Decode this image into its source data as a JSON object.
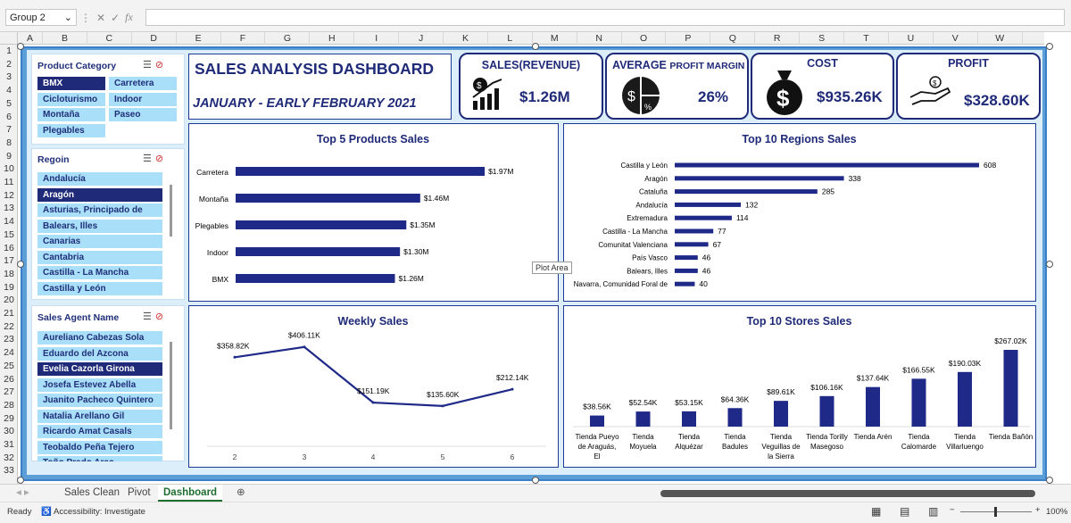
{
  "formula_bar": {
    "name_box": "Group 2",
    "fx": "fx"
  },
  "columns": [
    "A",
    "B",
    "C",
    "D",
    "E",
    "F",
    "G",
    "H",
    "I",
    "J",
    "K",
    "L",
    "M",
    "N",
    "O",
    "P",
    "Q",
    "R",
    "S",
    "T",
    "U",
    "V",
    "W"
  ],
  "rows": [
    "1",
    "2",
    "3",
    "4",
    "5",
    "6",
    "7",
    "8",
    "9",
    "10",
    "11",
    "12",
    "13",
    "14",
    "15",
    "16",
    "17",
    "18",
    "19",
    "20",
    "21",
    "22",
    "23",
    "24",
    "25",
    "26",
    "27",
    "28",
    "29",
    "30",
    "31",
    "32",
    "33"
  ],
  "header": {
    "title": "SALES ANALYSIS DASHBOARD",
    "subtitle": "JANUARY - EARLY FEBRUARY 2021"
  },
  "kpis": {
    "revenue": {
      "title": "SALES(REVENUE)",
      "value": "$1.26M"
    },
    "margin": {
      "title_a": "AVERAGE ",
      "title_b": "PROFIT MARGIN",
      "value": "26%"
    },
    "cost": {
      "title": "COST",
      "value": "$935.26K"
    },
    "profit": {
      "title": "PROFIT",
      "value": "$328.60K"
    }
  },
  "slicers": {
    "product": {
      "title": "Product Category",
      "items": [
        "BMX",
        "Carretera",
        "Cicloturismo",
        "Indoor",
        "Montaña",
        "Paseo",
        "Plegables"
      ]
    },
    "region": {
      "title": "Regoin",
      "items": [
        "Andalucía",
        "Aragón",
        "Asturias, Principado de",
        "Balears, Illes",
        "Canarias",
        "Cantabria",
        "Castilla - La Mancha",
        "Castilla y León"
      ]
    },
    "agent": {
      "title": "Sales Agent Name",
      "items": [
        "Aureliano Cabezas Sola",
        "Eduardo del Azcona",
        "Evelia Cazorla Girona",
        "Josefa Estevez Abella",
        "Juanito Pacheco Quintero",
        "Natalia Arellano Gil",
        "Ricardo Amat Casals",
        "Teobaldo Peña Tejero",
        "Toño Prado Arco"
      ]
    }
  },
  "charts": {
    "products": {
      "title": "Top 5 Products Sales"
    },
    "regions": {
      "title": "Top 10 Regions Sales"
    },
    "weekly": {
      "title": "Weekly Sales"
    },
    "stores": {
      "title": "Top 10 Stores Sales"
    }
  },
  "chart_data": [
    {
      "type": "bar",
      "orientation": "horizontal",
      "title": "Top 5 Products Sales",
      "categories": [
        "Carretera",
        "Montaña",
        "Plegables",
        "Indoor",
        "BMX"
      ],
      "values": [
        1.97,
        1.46,
        1.35,
        1.3,
        1.26
      ],
      "labels": [
        "$1.97M",
        "$1.46M",
        "$1.35M",
        "$1.30M",
        "$1.26M"
      ]
    },
    {
      "type": "bar",
      "orientation": "horizontal",
      "title": "Top 10 Regions Sales",
      "categories": [
        "Castilla y León",
        "Aragón",
        "Cataluña",
        "Andalucía",
        "Extremadura",
        "Castilla - La Mancha",
        "Comunitat Valenciana",
        "País Vasco",
        "Balears, Illes",
        "Navarra, Comunidad Foral de"
      ],
      "values": [
        608,
        338,
        285,
        132,
        114,
        77,
        67,
        46,
        46,
        40
      ],
      "labels": [
        "608",
        "338",
        "285",
        "132",
        "114",
        "77",
        "67",
        "46",
        "46",
        "40"
      ]
    },
    {
      "type": "line",
      "title": "Weekly Sales",
      "x": [
        2,
        3,
        4,
        5,
        6
      ],
      "values": [
        358.82,
        406.11,
        151.19,
        135.6,
        212.14
      ],
      "labels": [
        "$358.82K",
        "$406.11K",
        "$151.19K",
        "$135.60K",
        "$212.14K"
      ],
      "ylim": [
        0,
        450
      ]
    },
    {
      "type": "bar",
      "title": "Top 10 Stores Sales",
      "categories": [
        "Tienda Pueyo de Araguás, El",
        "Tienda Moyuela",
        "Tienda Alquézar",
        "Tienda Badules",
        "Tienda Veguillas de la Sierra",
        "Tienda Torilly Masegoso",
        "Tienda Arén",
        "Tienda Calomarde",
        "Tienda Villarluengo",
        "Tienda Bañón"
      ],
      "values": [
        38.56,
        52.54,
        53.15,
        64.36,
        89.61,
        106.16,
        137.64,
        166.55,
        190.03,
        267.02
      ],
      "labels": [
        "$38.56K",
        "$52.54K",
        "$53.15K",
        "$64.36K",
        "$89.61K",
        "$106.16K",
        "$137.64K",
        "$166.55K",
        "$190.03K",
        "$267.02K"
      ]
    }
  ],
  "tooltip": "Plot Area",
  "tabs": [
    "Sales Clean",
    "Pivot",
    "Dashboard"
  ],
  "status": {
    "ready": "Ready",
    "accessibility": "Accessibility: Investigate",
    "zoom": "100%"
  },
  "colors": {
    "navy": "#1f2a78",
    "chip": "#a9dff8",
    "bg": "#dbeefa"
  }
}
